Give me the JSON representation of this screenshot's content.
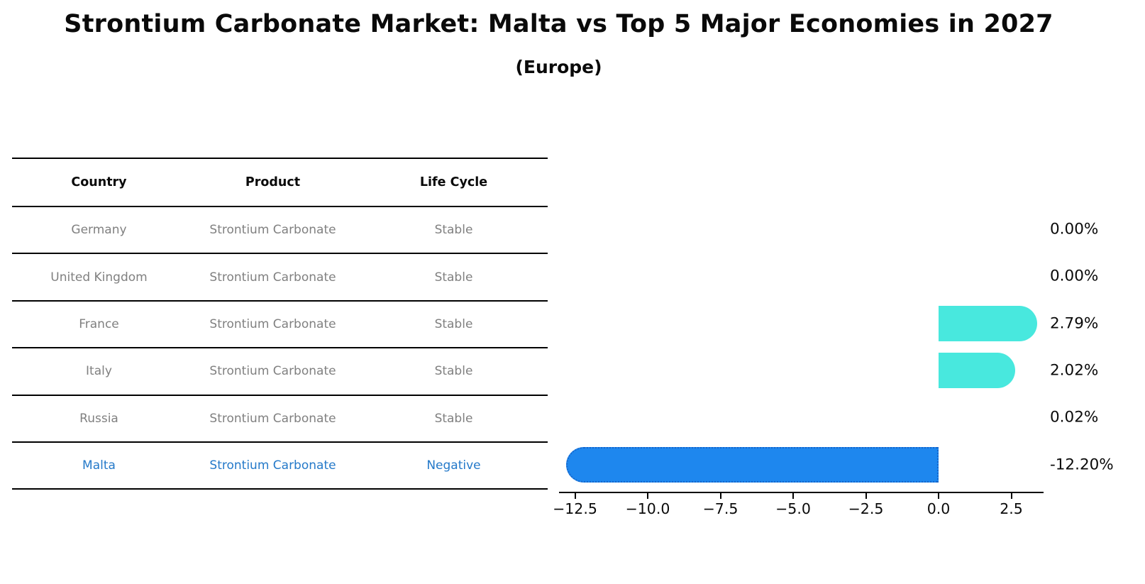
{
  "title": "Strontium Carbonate Market: Malta vs Top 5 Major Economies in 2027",
  "subtitle": "(Europe)",
  "table": {
    "headers": [
      "Country",
      "Product",
      "Life Cycle"
    ],
    "rows": [
      {
        "country": "Germany",
        "product": "Strontium Carbonate",
        "life_cycle": "Stable",
        "highlight": false
      },
      {
        "country": "United Kingdom",
        "product": "Strontium Carbonate",
        "life_cycle": "Stable",
        "highlight": false
      },
      {
        "country": "France",
        "product": "Strontium Carbonate",
        "life_cycle": "Stable",
        "highlight": false
      },
      {
        "country": "Italy",
        "product": "Strontium Carbonate",
        "life_cycle": "Stable",
        "highlight": false
      },
      {
        "country": "Russia",
        "product": "Strontium Carbonate",
        "life_cycle": "Stable",
        "highlight": false
      },
      {
        "country": "Malta",
        "product": "Strontium Carbonate",
        "life_cycle": "Negative",
        "highlight": true
      }
    ]
  },
  "chart_data": {
    "type": "bar",
    "orientation": "horizontal",
    "categories": [
      "Germany",
      "United Kingdom",
      "France",
      "Italy",
      "Russia",
      "Malta"
    ],
    "values": [
      0.0,
      0.0,
      2.79,
      2.02,
      0.02,
      -12.2
    ],
    "value_labels": [
      "0.00%",
      "0.00%",
      "2.79%",
      "2.02%",
      "0.02%",
      "-12.20%"
    ],
    "x_ticks": [
      -12.5,
      -10.0,
      -7.5,
      -5.0,
      -2.5,
      0.0,
      2.5
    ],
    "x_tick_labels": [
      "−12.5",
      "−10.0",
      "−7.5",
      "−5.0",
      "−2.5",
      "0.0",
      "2.5"
    ],
    "xlim": [
      -13.05,
      3.6
    ],
    "grid": false,
    "legend": null,
    "colors": {
      "bar_positive": "#48e8de",
      "bar_negative": "#1e87ee",
      "bar_negative_border": "#1566cc",
      "row_text": "#808080",
      "highlight_text": "#2479c9",
      "axis_text": "#0a0a0a"
    }
  }
}
